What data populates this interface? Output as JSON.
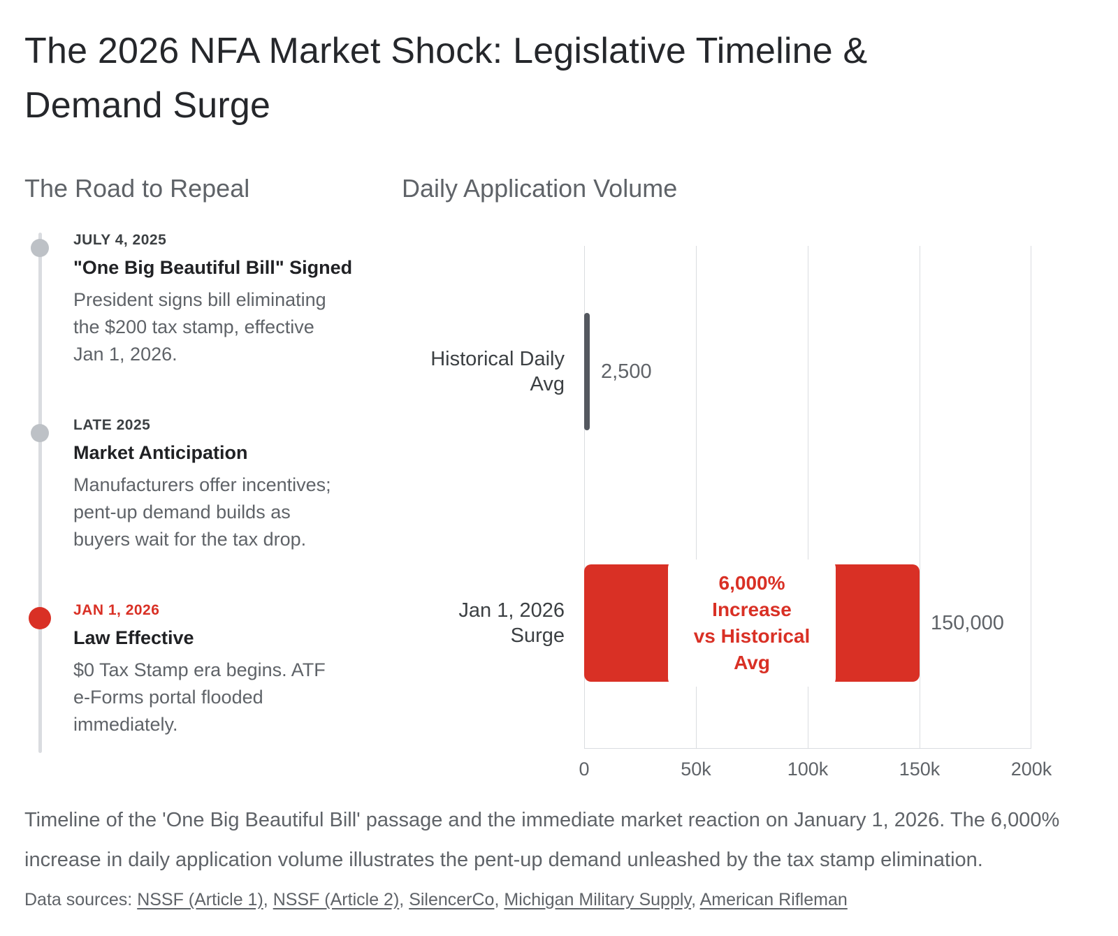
{
  "page": {
    "title": "The 2026 NFA Market Shock: Legislative Timeline & Demand Surge"
  },
  "timeline": {
    "heading": "The Road to Repeal",
    "events": [
      {
        "date": "JULY 4, 2025",
        "title": "\"One Big Beautiful Bill\" Signed",
        "description": "President signs bill eliminating the $200 tax stamp, effective Jan 1, 2026.",
        "dot_color": "#bdc1c6",
        "date_color": "#3c4043"
      },
      {
        "date": "LATE 2025",
        "title": "Market Anticipation",
        "description": "Manufacturers offer incentives; pent-up demand builds as buyers wait for the tax drop.",
        "dot_color": "#bdc1c6",
        "date_color": "#3c4043"
      },
      {
        "date": "JAN 1, 2026",
        "title": "Law Effective",
        "description": "$0 Tax Stamp era begins. ATF e-Forms portal flooded immediately.",
        "dot_color": "#d93025",
        "date_color": "#d93025"
      }
    ]
  },
  "chart_data": {
    "type": "bar",
    "orientation": "horizontal",
    "title": "Daily Application Volume",
    "categories": [
      "Historical Daily Avg",
      "Jan 1, 2026 Surge"
    ],
    "values": [
      2500,
      150000
    ],
    "value_labels": [
      "2,500",
      "150,000"
    ],
    "bar_colors": [
      "#54585f",
      "#d93025"
    ],
    "annotation": "6,000% Increase\nvs Historical Avg",
    "annotation_color": "#d93025",
    "xlabel": "",
    "ylabel": "",
    "xlim": [
      0,
      200000
    ],
    "x_ticks": [
      "0",
      "50k",
      "100k",
      "150k",
      "200k"
    ],
    "grid": true,
    "legend_position": "none"
  },
  "caption": "Timeline of the 'One Big Beautiful Bill' passage and the immediate market reaction on January 1, 2026. The 6,000% increase in daily application volume illustrates the pent-up demand unleashed by the tax stamp elimination.",
  "sources": {
    "prefix": "Data sources: ",
    "separator": ", ",
    "links": [
      "NSSF (Article 1)",
      "NSSF (Article 2)",
      "SilencerCo",
      "Michigan Military Supply",
      "American Rifleman"
    ]
  }
}
